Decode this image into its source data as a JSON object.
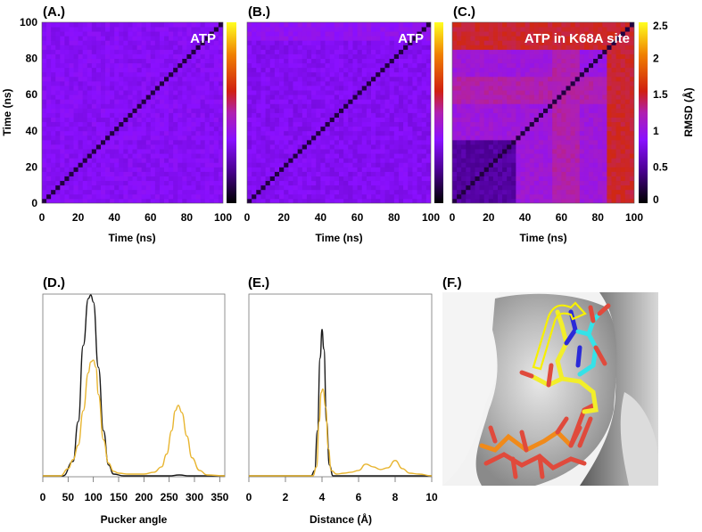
{
  "figure": {
    "panel_labels": [
      "(A.)",
      "(B.)",
      "(C.)",
      "(D.)",
      "(E.)",
      "(F.)"
    ]
  },
  "chart_data": [
    {
      "id": "A",
      "type": "heatmap",
      "title": "(A.)",
      "annotation": "ATP",
      "xlabel": "Time (ns)",
      "ylabel": "Time (ns)",
      "xlim": [
        0,
        100
      ],
      "ylim": [
        0,
        100
      ],
      "xticks": [
        "0",
        "20",
        "40",
        "60",
        "80",
        "100"
      ],
      "yticks": [
        "0",
        "20",
        "40",
        "60",
        "80",
        "100"
      ],
      "value_range_rmsd": [
        0.6,
        0.9
      ],
      "description": "Pairwise RMSD matrix, uniformly low (~0.7 Å) with faint block structure"
    },
    {
      "id": "B",
      "type": "heatmap",
      "title": "(B.)",
      "annotation": "ATP",
      "xlabel": "Time (ns)",
      "ylabel": "",
      "xlim": [
        0,
        100
      ],
      "ylim": [
        0,
        100
      ],
      "xticks": [
        "0",
        "20",
        "40",
        "60",
        "80",
        "100"
      ],
      "value_range_rmsd": [
        0.6,
        0.9
      ],
      "description": "Pairwise RMSD matrix, uniformly low (~0.7 Å)"
    },
    {
      "id": "C",
      "type": "heatmap",
      "title": "(C.)",
      "annotation": "ATP in K68A site",
      "xlabel": "Time (ns)",
      "ylabel": "",
      "xlim": [
        0,
        100
      ],
      "ylim": [
        0,
        100
      ],
      "xticks": [
        "0",
        "20",
        "40",
        "60",
        "80",
        "100"
      ],
      "colorbar": {
        "label": "RMSD (Å)",
        "range": [
          0,
          2.5
        ],
        "ticks": [
          "0",
          "0.5",
          "1",
          "1.5",
          "2",
          "2.5"
        ]
      },
      "blocks": [
        {
          "x": [
            0,
            35
          ],
          "y": [
            0,
            33
          ],
          "rmsd": 0.5
        },
        {
          "x": [
            0,
            100
          ],
          "y": [
            88,
            100
          ],
          "rmsd": 1.35
        },
        {
          "x": [
            84,
            100
          ],
          "y": [
            0,
            88
          ],
          "rmsd": 1.35
        },
        {
          "x": [
            0,
            84
          ],
          "y": [
            55,
            70
          ],
          "rmsd": 1.1
        },
        {
          "x": [
            35,
            84
          ],
          "y": [
            0,
            55
          ],
          "rmsd": 0.95
        }
      ],
      "description": "Pairwise RMSD matrix showing distinct conformational states; high RMSD (~1.4 Å) near 85-100 ns"
    },
    {
      "id": "D",
      "type": "line",
      "title": "(D.)",
      "xlabel": "Pucker angle",
      "ylabel": "",
      "xlim": [
        0,
        360
      ],
      "ylim": [
        0,
        1
      ],
      "xticks": [
        "0",
        "50",
        "100",
        "150",
        "200",
        "250",
        "300",
        "350"
      ],
      "series": [
        {
          "name": "ATP",
          "color": "#1a1a1a",
          "x": [
            0,
            40,
            60,
            70,
            80,
            90,
            95,
            100,
            110,
            120,
            130,
            140,
            160,
            250,
            270,
            290,
            360
          ],
          "y": [
            0,
            0,
            0.08,
            0.3,
            0.72,
            0.98,
            1.0,
            0.96,
            0.6,
            0.25,
            0.06,
            0.01,
            0,
            0,
            0.005,
            0,
            0
          ]
        },
        {
          "name": "ATP in K68A site",
          "color": "#e8b530",
          "x": [
            0,
            35,
            50,
            60,
            70,
            80,
            90,
            95,
            100,
            105,
            110,
            120,
            130,
            140,
            150,
            170,
            200,
            220,
            235,
            245,
            255,
            262,
            268,
            275,
            285,
            295,
            310,
            325,
            360
          ],
          "y": [
            0,
            0,
            0.04,
            0.09,
            0.17,
            0.36,
            0.57,
            0.63,
            0.64,
            0.6,
            0.45,
            0.2,
            0.07,
            0.025,
            0.015,
            0.01,
            0.01,
            0.02,
            0.05,
            0.12,
            0.25,
            0.36,
            0.39,
            0.35,
            0.22,
            0.1,
            0.03,
            0.005,
            0
          ]
        }
      ]
    },
    {
      "id": "E",
      "type": "line",
      "title": "(E.)",
      "xlabel": "Distance (Å)",
      "ylabel": "",
      "xlim": [
        0,
        10
      ],
      "ylim": [
        0,
        1
      ],
      "xticks": [
        "0",
        "2",
        "4",
        "6",
        "8",
        "10"
      ],
      "series": [
        {
          "name": "ATP",
          "color": "#1a1a1a",
          "x": [
            0,
            3.4,
            3.6,
            3.75,
            3.9,
            4.0,
            4.1,
            4.25,
            4.4,
            4.6,
            10
          ],
          "y": [
            0,
            0,
            0.03,
            0.25,
            0.65,
            0.81,
            0.7,
            0.3,
            0.06,
            0,
            0
          ]
        },
        {
          "name": "ATP in K68A site",
          "color": "#e8b530",
          "x": [
            0,
            3.5,
            3.7,
            3.85,
            3.95,
            4.05,
            4.2,
            4.35,
            4.5,
            4.8,
            5.2,
            5.6,
            6.0,
            6.4,
            6.8,
            7.2,
            7.6,
            8.0,
            8.4,
            8.8,
            9.3,
            10
          ],
          "y": [
            0,
            0,
            0.05,
            0.3,
            0.46,
            0.48,
            0.38,
            0.15,
            0.03,
            0.01,
            0.015,
            0.02,
            0.03,
            0.065,
            0.05,
            0.035,
            0.045,
            0.085,
            0.04,
            0.015,
            0.01,
            0
          ]
        }
      ]
    }
  ],
  "structure_panel": {
    "id": "F",
    "title": "(F.)",
    "description": "Molecular surface rendering of binding pocket with ATP overlays (yellow and cyan carbons, red oxygens, blue nitrogens, orange phosphates) and a yellow arrow indicating base rotation",
    "colors": {
      "surface": "#c8c8c8",
      "carbon_a": "#f2ee2a",
      "carbon_b": "#35e2e8",
      "oxygen": "#e04a3c",
      "nitrogen": "#2a2ad8",
      "phosphorus": "#f08a1a",
      "arrow": "#f7f000"
    }
  },
  "colormap": {
    "name": "gnuplot-heat",
    "stops": [
      "#000000",
      "#4a0090",
      "#8a10ff",
      "#c020a0",
      "#d03010",
      "#f08000",
      "#ffff20"
    ]
  }
}
